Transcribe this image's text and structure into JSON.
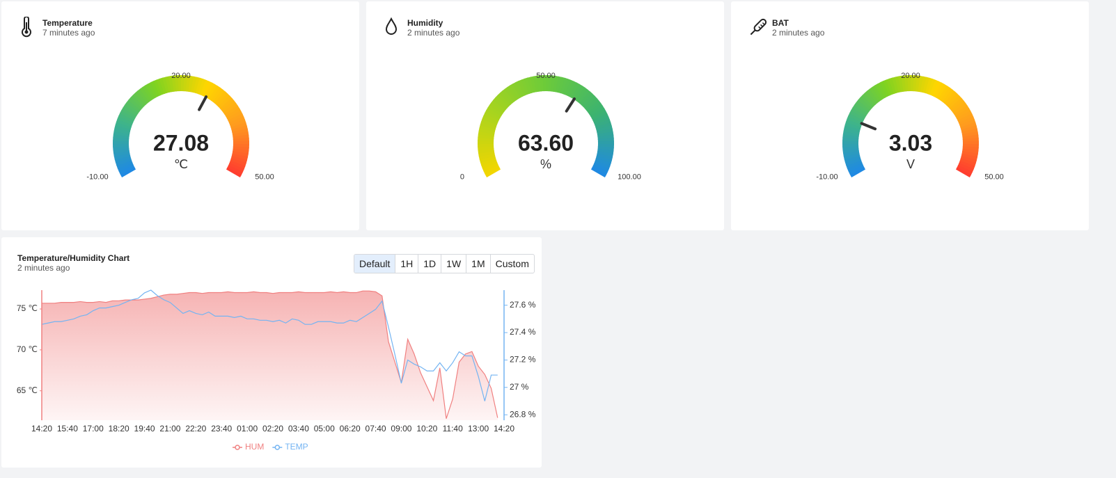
{
  "cards": [
    {
      "title": "Temperature",
      "time": "7 minutes ago",
      "value": {
        "value": 27.08,
        "label": "27.08"
      },
      "unit": "℃",
      "min": {
        "value": -10,
        "label": "-10.00"
      },
      "max": {
        "value": 50,
        "label": "50.00"
      },
      "mid": {
        "value": 20,
        "label": "20.00"
      },
      "colors": [
        "#1e88e5",
        "#3db38c",
        "#7ed321",
        "#ffd600",
        "#ff9a1f",
        "#ff3b2f"
      ]
    },
    {
      "title": "Humidity",
      "time": "2 minutes ago",
      "value": {
        "value": 63.6,
        "label": "63.60"
      },
      "unit": "%",
      "min": 0,
      "max": {
        "value": 100,
        "label": "100.00"
      },
      "mid": {
        "value": 50,
        "label": "50.00"
      },
      "colors": [
        "#f4d600",
        "#a8d41e",
        "#6ccb3a",
        "#3cb370",
        "#1e88e5"
      ]
    },
    {
      "title": "BAT",
      "time": "2 minutes ago",
      "value": {
        "value": 3.03,
        "label": "3.03"
      },
      "unit": "V",
      "min": {
        "value": -10,
        "label": "-10.00"
      },
      "max": {
        "value": 50,
        "label": "50.00"
      },
      "mid": {
        "value": 20,
        "label": "20.00"
      },
      "colors": [
        "#1e88e5",
        "#3db38c",
        "#7ed321",
        "#ffd600",
        "#ff9a1f",
        "#ff3b2f"
      ]
    }
  ],
  "range_buttons": [
    "Default",
    "1H",
    "1D",
    "1W",
    "1M",
    "Custom"
  ],
  "chart_data": {
    "type": "line",
    "title": "Temperature/Humidity Chart",
    "subtitle": "2 minutes ago",
    "categories": [
      "14:20",
      null,
      null,
      null,
      "15:40",
      null,
      null,
      null,
      "17:00",
      null,
      null,
      null,
      "18:20",
      null,
      null,
      null,
      "19:40",
      null,
      null,
      null,
      "21:00",
      null,
      null,
      null,
      "22:20",
      null,
      null,
      null,
      "23:40",
      null,
      null,
      null,
      "01:00",
      null,
      null,
      null,
      "02:20",
      null,
      null,
      null,
      "03:40",
      null,
      null,
      null,
      "05:00",
      null,
      null,
      null,
      "06:20",
      null,
      null,
      null,
      "07:40",
      null,
      null,
      null,
      "09:00",
      null,
      null,
      null,
      "10:20",
      null,
      null,
      null,
      "11:40",
      null,
      null,
      null,
      "13:00",
      null,
      null,
      null,
      "14:20"
    ],
    "series": [
      {
        "name": "HUM",
        "color": "#f08080",
        "fill": "area",
        "values": [
          75.7,
          75.7,
          75.7,
          75.8,
          75.8,
          75.8,
          75.9,
          75.8,
          75.8,
          75.9,
          75.8,
          76.0,
          76.0,
          76.1,
          76.1,
          76.1,
          76.2,
          76.3,
          76.5,
          76.7,
          76.8,
          76.8,
          76.9,
          77.0,
          77.0,
          76.9,
          77.0,
          77.0,
          77.0,
          77.1,
          77.0,
          77.0,
          77.0,
          77.1,
          77.0,
          77.0,
          76.9,
          77.0,
          77.0,
          77.0,
          77.1,
          77.0,
          77.0,
          77.0,
          77.0,
          77.1,
          77.0,
          77.1,
          77.0,
          77.0,
          77.2,
          77.2,
          77.1,
          76.6,
          71.0,
          68.5,
          66.0,
          71.3,
          69.5,
          67.2,
          65.5,
          63.8,
          67.8,
          61.6,
          64.0,
          68.5,
          69.5,
          69.8,
          68.0,
          67.0,
          65.3,
          61.7,
          null
        ]
      },
      {
        "name": "TEMP",
        "color": "#74b4f2",
        "axis": "y2",
        "values": [
          27.46,
          27.47,
          27.48,
          27.48,
          27.49,
          27.5,
          27.52,
          27.53,
          27.56,
          27.58,
          27.58,
          27.59,
          27.6,
          27.62,
          27.64,
          27.65,
          27.69,
          27.71,
          27.67,
          27.64,
          27.62,
          27.58,
          27.54,
          27.56,
          27.54,
          27.53,
          27.55,
          27.52,
          27.52,
          27.52,
          27.51,
          27.52,
          27.5,
          27.5,
          27.49,
          27.49,
          27.48,
          27.49,
          27.47,
          27.5,
          27.49,
          27.46,
          27.46,
          27.48,
          27.48,
          27.48,
          27.47,
          27.47,
          27.49,
          27.48,
          27.51,
          27.54,
          27.57,
          27.63,
          27.44,
          27.24,
          27.03,
          27.2,
          27.17,
          27.15,
          27.12,
          27.12,
          27.18,
          27.12,
          27.18,
          27.26,
          27.23,
          27.23,
          27.08,
          26.9,
          27.09,
          27.09,
          null
        ]
      }
    ],
    "ylim": [
      61.4,
      77.3
    ],
    "yticks": [
      {
        "value": 65,
        "label": "65 ℃"
      },
      {
        "value": 70,
        "label": "70 ℃"
      },
      {
        "value": 75,
        "label": "75 ℃"
      }
    ],
    "y2lim": [
      26.76,
      27.71
    ],
    "y2ticks": [
      {
        "value": 26.8,
        "label": "26.8 %"
      },
      {
        "value": 27,
        "label": "27 %"
      },
      {
        "value": 27.2,
        "label": "27.2 %"
      },
      {
        "value": 27.4,
        "label": "27.4 %"
      },
      {
        "value": 27.6,
        "label": "27.6 %"
      }
    ],
    "legend": "bottom"
  }
}
